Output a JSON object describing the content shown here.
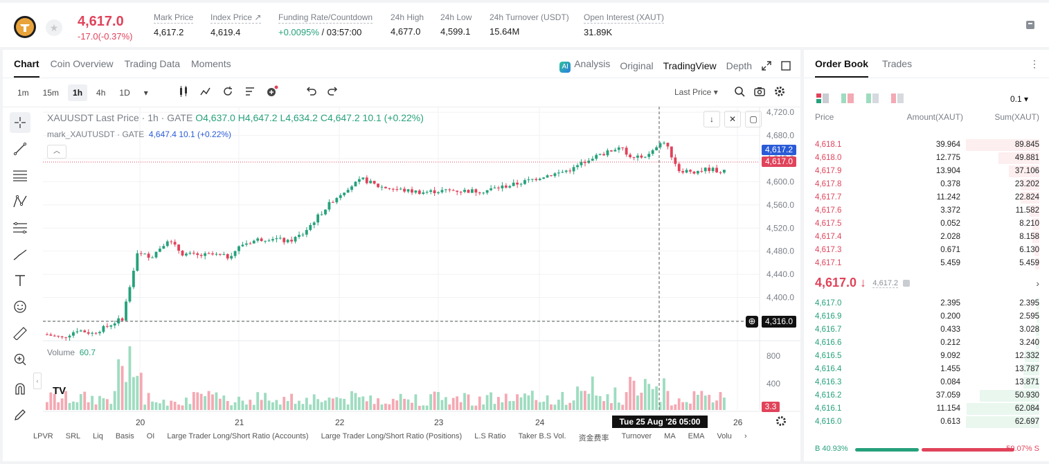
{
  "header": {
    "symbol_logo": "tether-gold-icon",
    "last_price": "4,617.0",
    "change": "-17.0(-0.37%)",
    "stats": [
      {
        "label": "Mark Price",
        "value": "4,617.2"
      },
      {
        "label": "Index Price ↗",
        "value": "4,619.4"
      },
      {
        "label": "Funding Rate/Countdown",
        "value_green": "+0.0095%",
        "value": " / 03:57:00"
      },
      {
        "label": "24h High",
        "value": "4,677.0"
      },
      {
        "label": "24h Low",
        "value": "4,599.1"
      },
      {
        "label": "24h Turnover (USDT)",
        "value": "15.64M"
      },
      {
        "label": "Open Interest (XAUT)",
        "value": "31.89K"
      }
    ]
  },
  "chart_tabs": [
    "Chart",
    "Coin Overview",
    "Trading Data",
    "Moments"
  ],
  "view_tabs": {
    "analysis": "Analysis",
    "original": "Original",
    "tradingview": "TradingView",
    "depth": "Depth",
    "ai_badge": "AI"
  },
  "intervals": [
    "1m",
    "15m",
    "1h",
    "4h",
    "1D"
  ],
  "interval_dropdown": "▾",
  "last_price_select": "Last Price ▾",
  "legend": {
    "title": "XAUUSDT Last Price · 1h · GATE",
    "o": "O4,637.0",
    "h": "H4,647.2",
    "l": "L4,634.2",
    "c": "C4,647.2",
    "chg": "10.1 (+0.22%)",
    "mark_name": "mark_XAUTUSDT · GATE",
    "mark_val": "4,647.4",
    "mark_chg": "10.1 (+0.22%)"
  },
  "volume": {
    "label": "Volume",
    "value": "60.7",
    "tag": "3.3"
  },
  "price_tags": {
    "mark": "4,617.2",
    "last": "4,617.0",
    "cross": "4,316.0"
  },
  "crosshair_date": "Tue 25 Aug '26   05:00",
  "indicators": [
    "LPVR",
    "SRL",
    "Liq",
    "Basis",
    "OI",
    "Large Trader Long/Short Ratio (Accounts)",
    "Large Trader Long/Short Ratio (Positions)",
    "L.S Ratio",
    "Taker B.S Vol.",
    "资金费率",
    "Turnover",
    "MA",
    "EMA",
    "Volu"
  ],
  "colors": {
    "up": "#26a17b",
    "down": "#e0435a",
    "up_vol": "#9edcc0",
    "down_vol": "#f4a9b3",
    "mark_tag": "#2a5bd7"
  },
  "chart_data": {
    "type": "candlestick",
    "symbol": "XAUUSDT",
    "interval": "1h",
    "y_ticks": [
      4720.0,
      4680.0,
      4640.0,
      4600.0,
      4560.0,
      4520.0,
      4480.0,
      4440.0,
      4400.0,
      4360.0
    ],
    "y_tick_labels": [
      "4,720.0",
      "4,680.0",
      "4,640.0",
      "4,600.0",
      "4,560.0",
      "4,520.0",
      "4,480.0",
      "4,440.0",
      "4,400.0",
      "4,360.0"
    ],
    "vol_ticks": [
      "800",
      "400"
    ],
    "x_labels": [
      "20",
      "21",
      "22",
      "23",
      "24",
      "26"
    ],
    "close_path": [
      [
        0,
        4336
      ],
      [
        4,
        4330
      ],
      [
        8,
        4344
      ],
      [
        12,
        4338
      ],
      [
        16,
        4350
      ],
      [
        20,
        4364
      ],
      [
        24,
        4474
      ],
      [
        28,
        4472
      ],
      [
        32,
        4500
      ],
      [
        36,
        4476
      ],
      [
        40,
        4472
      ],
      [
        44,
        4474
      ],
      [
        48,
        4470
      ],
      [
        52,
        4492
      ],
      [
        56,
        4500
      ],
      [
        60,
        4503
      ],
      [
        64,
        4496
      ],
      [
        68,
        4510
      ],
      [
        72,
        4540
      ],
      [
        76,
        4568
      ],
      [
        80,
        4590
      ],
      [
        84,
        4604
      ],
      [
        88,
        4592
      ],
      [
        92,
        4588
      ],
      [
        96,
        4584
      ],
      [
        100,
        4582
      ],
      [
        104,
        4584
      ],
      [
        108,
        4585
      ],
      [
        112,
        4584
      ],
      [
        116,
        4584
      ],
      [
        120,
        4590
      ],
      [
        124,
        4595
      ],
      [
        128,
        4602
      ],
      [
        132,
        4610
      ],
      [
        136,
        4615
      ],
      [
        140,
        4623
      ],
      [
        144,
        4640
      ],
      [
        148,
        4648
      ],
      [
        152,
        4660
      ],
      [
        156,
        4640
      ],
      [
        160,
        4646
      ],
      [
        164,
        4670
      ],
      [
        168,
        4620
      ],
      [
        172,
        4618
      ],
      [
        176,
        4622
      ],
      [
        180,
        4617
      ]
    ]
  },
  "orderbook": {
    "tabs": [
      "Order Book",
      "Trades"
    ],
    "tick": "0.1 ▾",
    "headers": [
      "Price",
      "Amount(XAUT)",
      "Sum(XAUT)"
    ],
    "asks": [
      {
        "price": "4,618.1",
        "amount": "39.964",
        "sum": "89.845",
        "depth": 1.0
      },
      {
        "price": "4,618.0",
        "amount": "12.775",
        "sum": "49.881",
        "depth": 0.555
      },
      {
        "price": "4,617.9",
        "amount": "13.904",
        "sum": "37.106",
        "depth": 0.413
      },
      {
        "price": "4,617.8",
        "amount": "0.378",
        "sum": "23.202",
        "depth": 0.258
      },
      {
        "price": "4,617.7",
        "amount": "11.242",
        "sum": "22.824",
        "depth": 0.254
      },
      {
        "price": "4,617.6",
        "amount": "3.372",
        "sum": "11.582",
        "depth": 0.129
      },
      {
        "price": "4,617.5",
        "amount": "0.052",
        "sum": "8.210",
        "depth": 0.091
      },
      {
        "price": "4,617.4",
        "amount": "2.028",
        "sum": "8.158",
        "depth": 0.091
      },
      {
        "price": "4,617.3",
        "amount": "0.671",
        "sum": "6.130",
        "depth": 0.068
      },
      {
        "price": "4,617.1",
        "amount": "5.459",
        "sum": "5.459",
        "depth": 0.061
      }
    ],
    "mid_price": "4,617.0 ↓",
    "mid_mark": "4,617.2",
    "bids": [
      {
        "price": "4,617.0",
        "amount": "2.395",
        "sum": "2.395",
        "depth": 0.038
      },
      {
        "price": "4,616.9",
        "amount": "0.200",
        "sum": "2.595",
        "depth": 0.041
      },
      {
        "price": "4,616.7",
        "amount": "0.433",
        "sum": "3.028",
        "depth": 0.048
      },
      {
        "price": "4,616.6",
        "amount": "0.212",
        "sum": "3.240",
        "depth": 0.052
      },
      {
        "price": "4,616.5",
        "amount": "9.092",
        "sum": "12.332",
        "depth": 0.197
      },
      {
        "price": "4,616.4",
        "amount": "1.455",
        "sum": "13.787",
        "depth": 0.22
      },
      {
        "price": "4,616.3",
        "amount": "0.084",
        "sum": "13.871",
        "depth": 0.221
      },
      {
        "price": "4,616.2",
        "amount": "37.059",
        "sum": "50.930",
        "depth": 0.812
      },
      {
        "price": "4,616.1",
        "amount": "11.154",
        "sum": "62.084",
        "depth": 0.99
      },
      {
        "price": "4,616.0",
        "amount": "0.613",
        "sum": "62.697",
        "depth": 1.0
      }
    ],
    "buy_ratio": "B 40.93%",
    "sell_ratio": "59.07% S",
    "buy_pct": 40.93
  }
}
